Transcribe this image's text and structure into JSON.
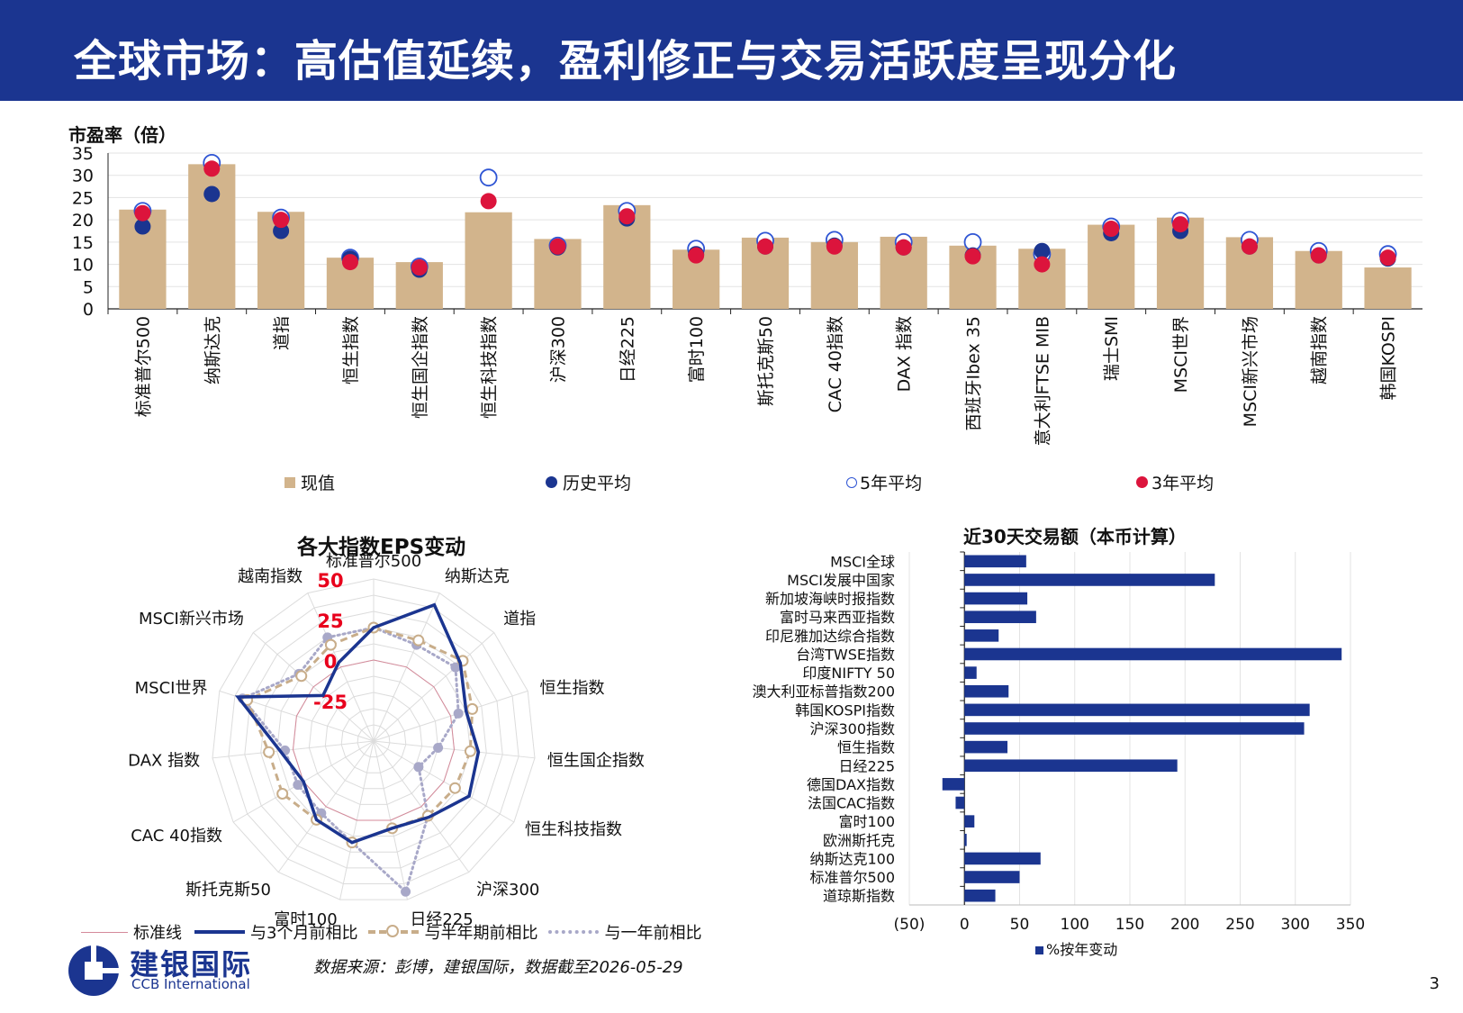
{
  "title": "全球市场：高估值延续，盈利修正与交易活跃度呈现分化",
  "page_number": "3",
  "source": "数据来源：彭博，建银国际，数据截至2026-05-29",
  "logo": {
    "cn": "建银国际",
    "en": "CCB International"
  },
  "colors": {
    "header": "#1b3590",
    "bar_tan": "#d2b48c",
    "navy": "#1b3590",
    "red": "#dc143c",
    "grey": "#a8a8c8"
  },
  "chart_data": [
    {
      "type": "bar",
      "ylabel": "市盈率（倍）",
      "ylim": [
        0,
        35
      ],
      "yticks": [
        "0",
        "5",
        "10",
        "15",
        "20",
        "25",
        "30",
        "35"
      ],
      "categories": [
        "标准普尔500",
        "纳斯达克",
        "道指",
        "恒生指数",
        "恒生国企指数",
        "恒生科技指数",
        "沪深300",
        "日经225",
        "富时100",
        "斯托克斯50",
        "CAC 40指数",
        "DAX 指数",
        "西班牙Ibex 35",
        "意大利FTSE MIB",
        "瑞士SMI",
        "MSCI世界",
        "MSCI新兴市场",
        "越南指数",
        "韩国KOSPI"
      ],
      "series": [
        {
          "name": "现值",
          "values": [
            22.3,
            32.5,
            21.8,
            11.5,
            10.5,
            21.7,
            15.7,
            23.3,
            13.3,
            16.0,
            15.0,
            16.2,
            14.2,
            13.5,
            18.9,
            20.5,
            16.1,
            13.0,
            9.3
          ]
        },
        {
          "name": "历史平均",
          "values": [
            18.5,
            25.8,
            17.5,
            11.3,
            8.8,
            null,
            13.8,
            20.3,
            12.3,
            14.0,
            14.2,
            13.8,
            12.0,
            13.0,
            17.0,
            17.5,
            14.0,
            12.0,
            11.3
          ]
        },
        {
          "name": "5年平均",
          "values": [
            22.0,
            32.8,
            20.5,
            11.5,
            9.5,
            29.5,
            14.2,
            22.0,
            13.5,
            15.3,
            15.5,
            15.0,
            15.0,
            12.3,
            18.5,
            19.8,
            15.5,
            13.0,
            12.3
          ]
        },
        {
          "name": "3年平均",
          "values": [
            21.5,
            31.5,
            20.0,
            10.5,
            9.3,
            24.2,
            14.0,
            20.8,
            12.0,
            14.0,
            14.0,
            13.8,
            11.8,
            10.0,
            18.0,
            19.0,
            14.0,
            12.0,
            11.5
          ]
        }
      ]
    },
    {
      "type": "radar",
      "title": "各大指数EPS变动",
      "rlim": [
        -50,
        50
      ],
      "ring_labels": [
        "50",
        "25",
        "0",
        "-25"
      ],
      "categories": [
        "标准普尔500",
        "纳斯达克",
        "道指",
        "恒生指数",
        "恒生国企指数",
        "恒生科技指数",
        "沪深300",
        "日经225",
        "富时100",
        "斯托克斯50",
        "CAC 40指数",
        "DAX 指数",
        "MSCI世界",
        "MSCI新兴市场",
        "越南指数"
      ],
      "series": [
        {
          "name": "标准线",
          "values": [
            0,
            0,
            0,
            0,
            0,
            0,
            0,
            0,
            0,
            0,
            0,
            0,
            0,
            0,
            0
          ]
        },
        {
          "name": "与3个月前相比",
          "values": [
            20,
            42,
            22,
            10,
            15,
            18,
            8,
            5,
            14,
            10,
            0,
            8,
            38,
            -8,
            3
          ]
        },
        {
          "name": "与半年期前相比",
          "values": [
            20,
            18,
            24,
            14,
            10,
            8,
            7,
            5,
            14,
            10,
            15,
            15,
            32,
            10,
            15
          ]
        },
        {
          "name": "与一年前相比",
          "values": [
            20,
            15,
            18,
            5,
            -10,
            -18,
            7,
            45,
            14,
            5,
            4,
            5,
            35,
            12,
            20
          ]
        }
      ]
    },
    {
      "type": "bar",
      "orientation": "horizontal",
      "title": "近30天交易额（本币计算）",
      "xlim": [
        -50,
        350
      ],
      "xticks": [
        "(50)",
        "0",
        "50",
        "100",
        "150",
        "200",
        "250",
        "300",
        "350"
      ],
      "categories": [
        "MSCI全球",
        "MSCI发展中国家",
        "新加坡海峡时报指数",
        "富时马来西亚指数",
        "印尼雅加达综合指数",
        "台湾TWSE指数",
        "印度NIFTY 50",
        "澳大利亚标普指数200",
        "韩国KOSPI指数",
        "沪深300指数",
        "恒生指数",
        "日经225",
        "德国DAX指数",
        "法国CAC指数",
        "富时100",
        "欧洲斯托克",
        "纳斯达克100",
        "标准普尔500",
        "道琼斯指数"
      ],
      "series": [
        {
          "name": "%按年变动",
          "values": [
            56,
            227,
            57,
            65,
            31,
            342,
            11,
            40,
            313,
            308,
            39,
            193,
            -20,
            -8,
            9,
            2,
            69,
            50,
            28
          ]
        }
      ]
    }
  ]
}
